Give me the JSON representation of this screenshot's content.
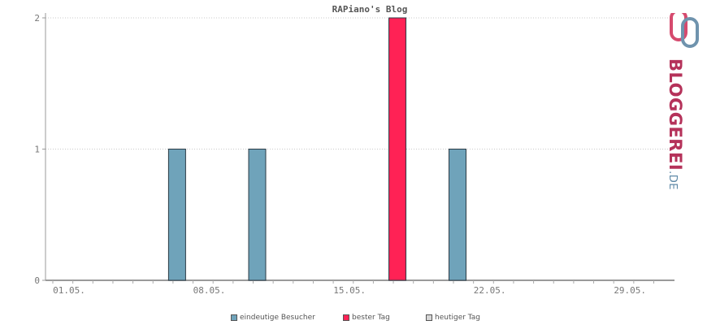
{
  "chart_data": {
    "type": "bar",
    "title": "RAPiano's Blog",
    "x_tick_labels": [
      "01.05.",
      "08.05.",
      "15.05.",
      "22.05.",
      "29.05."
    ],
    "y_tick_labels": [
      "0",
      "1",
      "2"
    ],
    "ylim": [
      0,
      2
    ],
    "x_start_day": 1,
    "x_end_day": 31,
    "month": "05",
    "bars": [
      {
        "day": 7,
        "value": 1,
        "series": "eindeutige Besucher"
      },
      {
        "day": 11,
        "value": 1,
        "series": "eindeutige Besucher"
      },
      {
        "day": 18,
        "value": 2,
        "series": "bester Tag"
      },
      {
        "day": 21,
        "value": 1,
        "series": "eindeutige Besucher"
      }
    ],
    "series": [
      {
        "name": "eindeutige Besucher",
        "color": "#6fa3ba"
      },
      {
        "name": "bester Tag",
        "color": "#ff2255"
      },
      {
        "name": "heutiger Tag",
        "color": "#d6d6d6"
      }
    ],
    "grid": true
  },
  "logo": {
    "main": "BLOGGEREI",
    "tld": ".DE"
  }
}
